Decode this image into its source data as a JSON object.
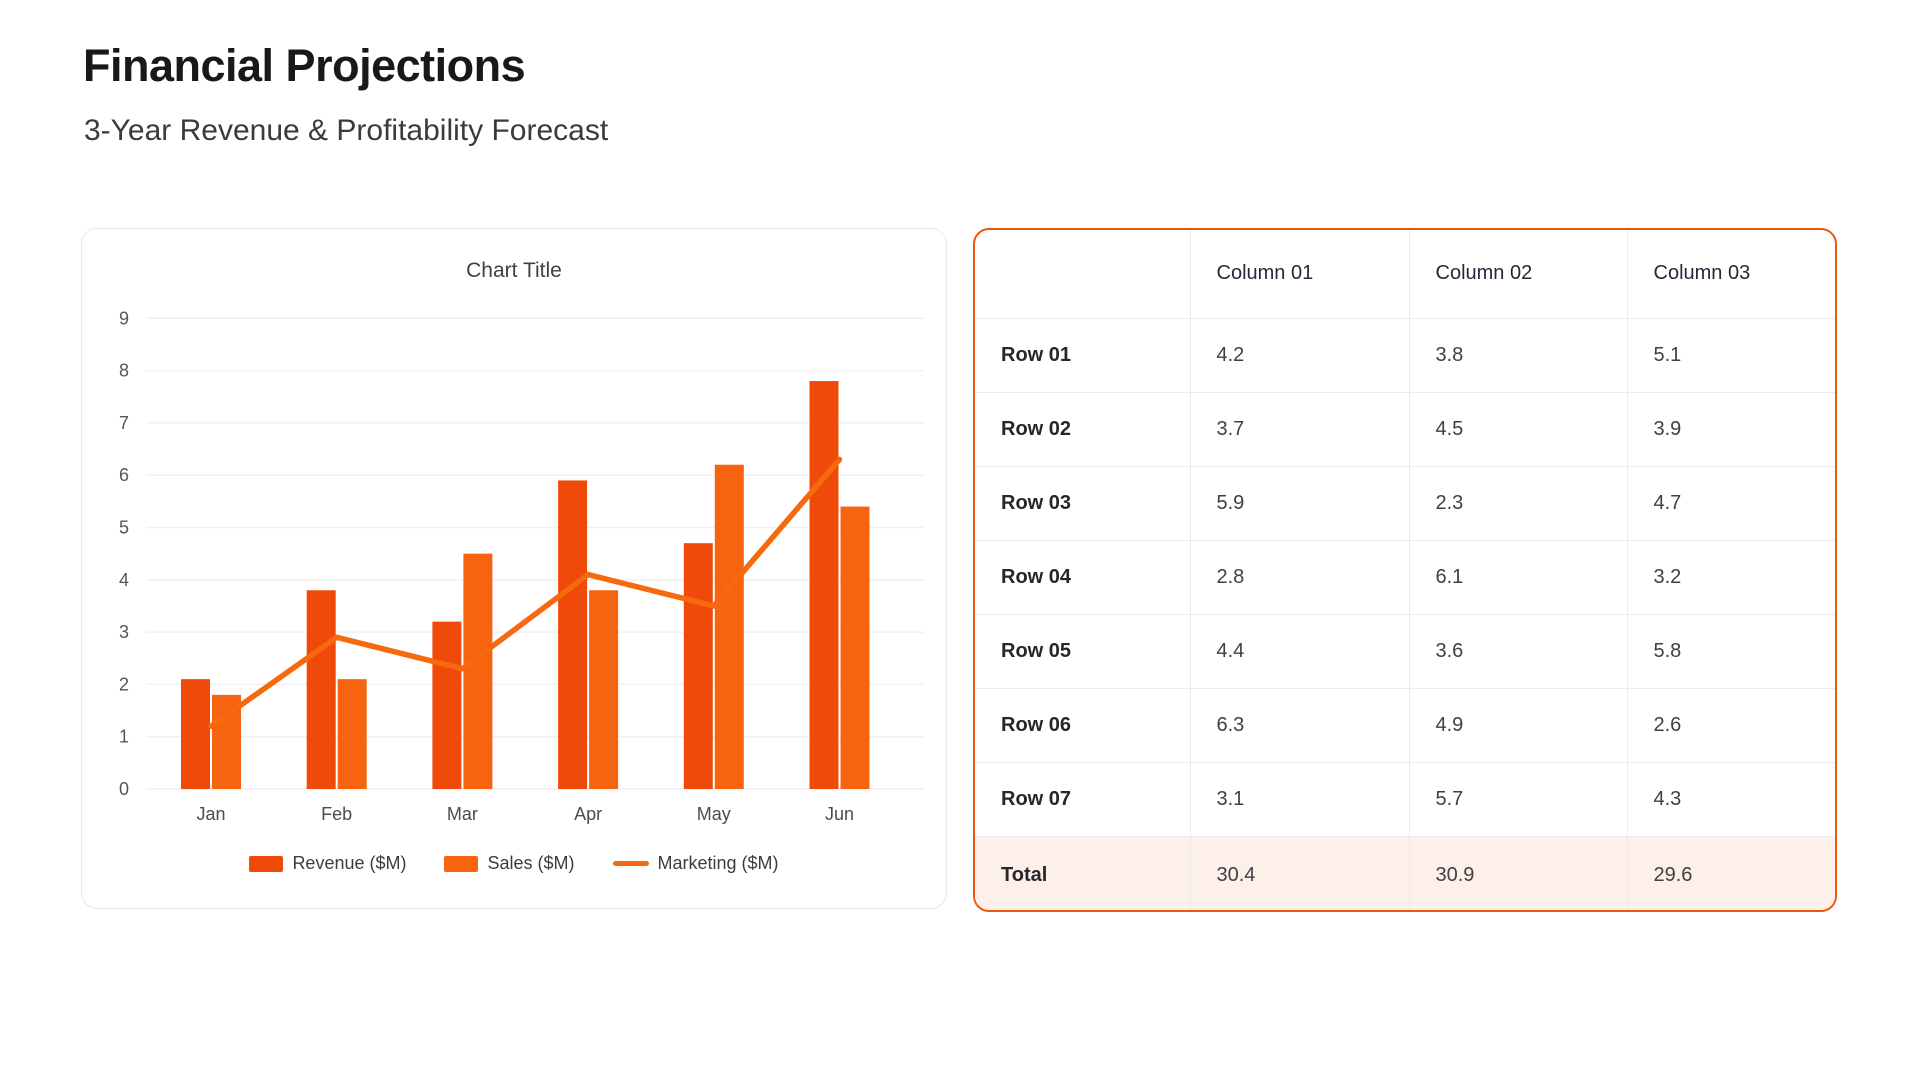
{
  "page": {
    "title": "Financial Projections",
    "subtitle": "3-Year Revenue & Profitability Forecast"
  },
  "chart_data": {
    "type": "bar",
    "title": "Chart Title",
    "categories": [
      "Jan",
      "Feb",
      "Mar",
      "Apr",
      "May",
      "Jun"
    ],
    "series": [
      {
        "name": "Revenue ($M)",
        "type": "bar",
        "color": "#F04A0A",
        "values": [
          2.1,
          3.8,
          3.2,
          5.9,
          4.7,
          7.8
        ]
      },
      {
        "name": "Sales ($M)",
        "type": "bar",
        "color": "#F7640F",
        "values": [
          1.8,
          2.1,
          4.5,
          3.8,
          6.2,
          5.4
        ]
      },
      {
        "name": "Marketing ($M)",
        "type": "line",
        "color": "#F7690E",
        "values": [
          1.2,
          2.9,
          2.3,
          4.1,
          3.5,
          6.3
        ]
      }
    ],
    "xlabel": "",
    "ylabel": "",
    "ylim": [
      0,
      9
    ],
    "ytick_step": 1,
    "grid": true,
    "legend_position": "bottom",
    "colors": {
      "grid_line": "#f1f1f2",
      "axis_text": "#55555c",
      "table_border": "#EA580C",
      "total_row_bg": "#FCF0E9"
    }
  },
  "table": {
    "corner": "",
    "columns": [
      "Column 01",
      "Column 02",
      "Column 03"
    ],
    "rows": [
      {
        "label": "Row 01",
        "c1": "4.2",
        "c2": "3.8",
        "c3": "5.1"
      },
      {
        "label": "Row 02",
        "c1": "3.7",
        "c2": "4.5",
        "c3": "3.9"
      },
      {
        "label": "Row 03",
        "c1": "5.9",
        "c2": "2.3",
        "c3": "4.7"
      },
      {
        "label": "Row 04",
        "c1": "2.8",
        "c2": "6.1",
        "c3": "3.2"
      },
      {
        "label": "Row 05",
        "c1": "4.4",
        "c2": "3.6",
        "c3": "5.8"
      },
      {
        "label": "Row 06",
        "c1": "6.3",
        "c2": "4.9",
        "c3": "2.6"
      },
      {
        "label": "Row 07",
        "c1": "3.1",
        "c2": "5.7",
        "c3": "4.3"
      }
    ],
    "total": {
      "label": "Total",
      "c1": "30.4",
      "c2": "30.9",
      "c3": "29.6"
    }
  }
}
